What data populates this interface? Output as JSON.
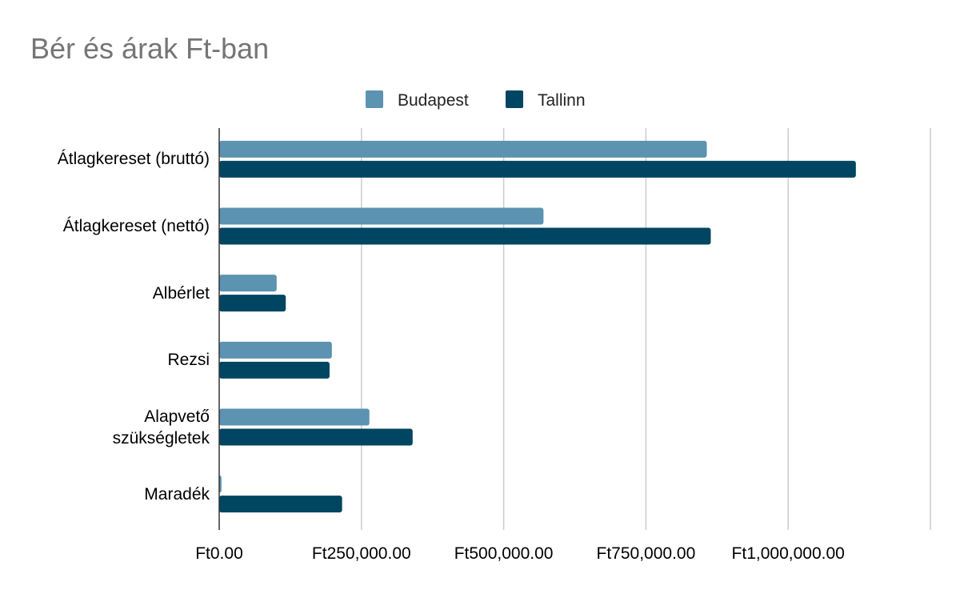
{
  "chart_data": {
    "type": "bar",
    "orientation": "horizontal",
    "title": "Bér és árak Ft-ban",
    "categories": [
      "Átlagkereset (bruttó)",
      "Átlagkereset (nettó)",
      "Albérlet",
      "Rezsi",
      "Alapvető\nszükségletek",
      "Maradék"
    ],
    "series": [
      {
        "name": "Budapest",
        "color": "#5b93b1",
        "values": [
          857000,
          570000,
          101000,
          198000,
          264000,
          4000
        ]
      },
      {
        "name": "Tallinn",
        "color": "#004561",
        "values": [
          1119000,
          864000,
          117000,
          194000,
          340000,
          216000
        ]
      }
    ],
    "xticks": [
      0,
      250000,
      500000,
      750000,
      1000000,
      1250000
    ],
    "xtick_labels": [
      "Ft0.00",
      "Ft250,000.00",
      "Ft500,000.00",
      "Ft750,000.00",
      "Ft1,000,000.00",
      ""
    ],
    "xlim": [
      0,
      1250000
    ],
    "xlabel": "",
    "ylabel": "",
    "grid": true,
    "legend_position": "top"
  }
}
